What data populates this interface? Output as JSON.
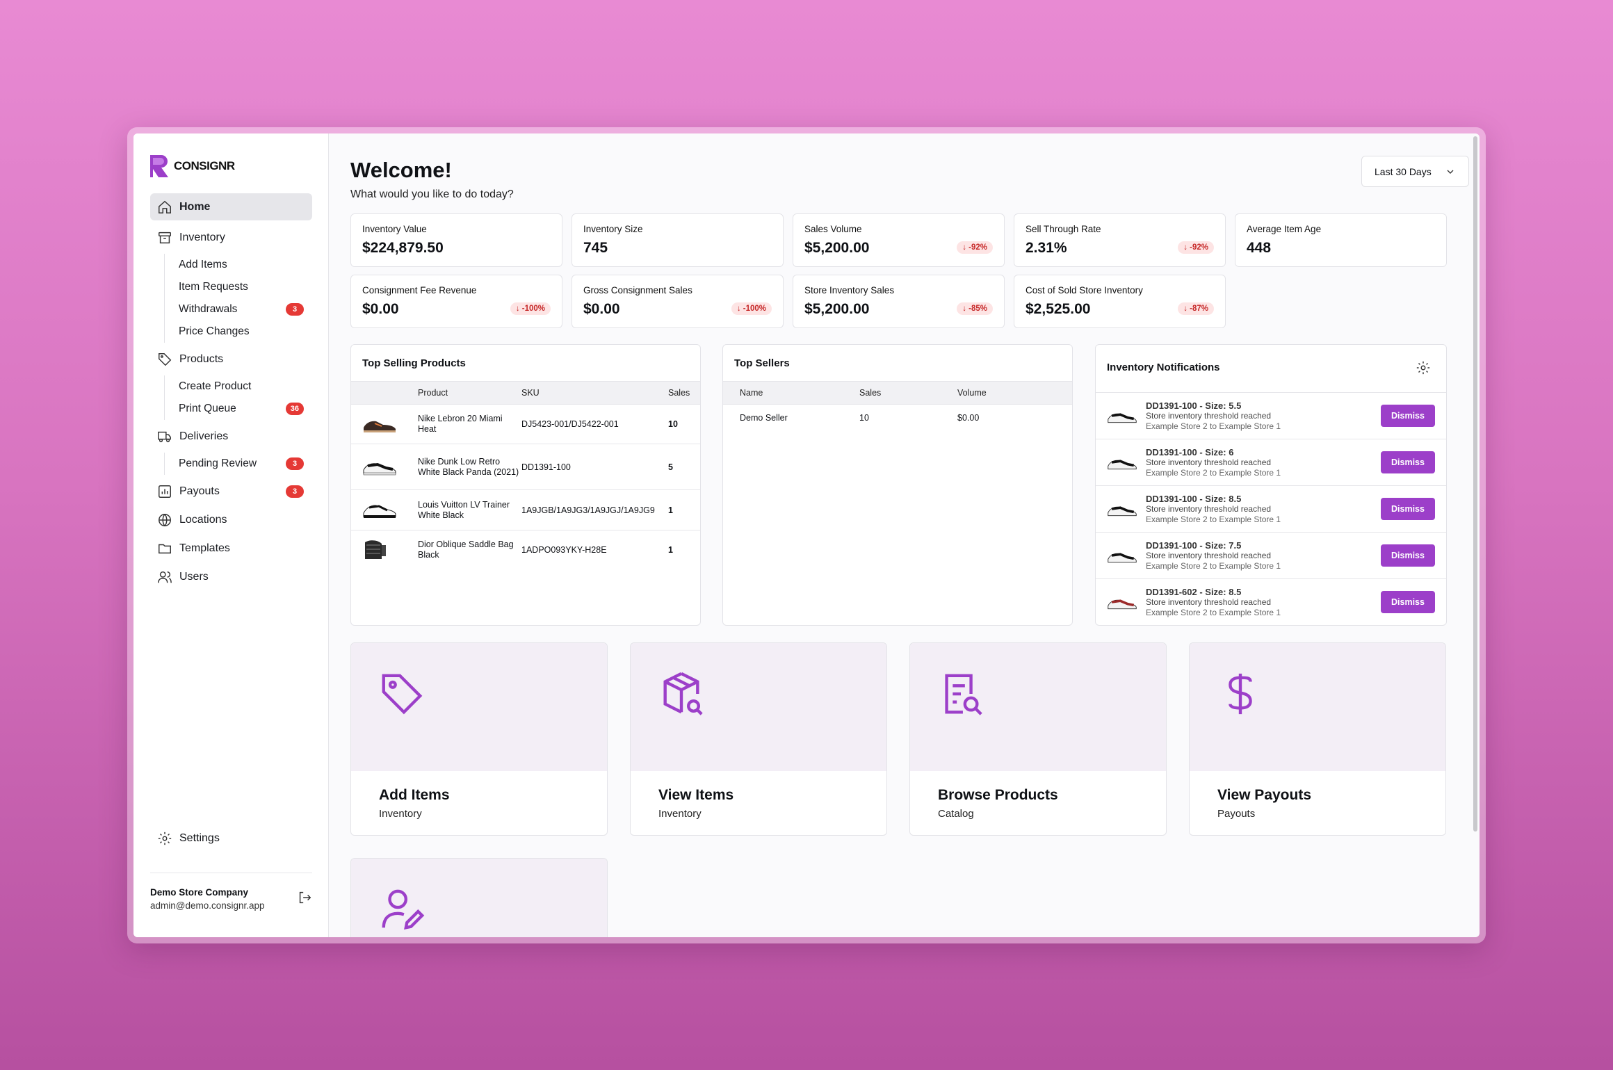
{
  "brand": {
    "name": "CONSIGNR",
    "accent": "#9c3fc9"
  },
  "sidebar": {
    "home": "Home",
    "inventory": "Inventory",
    "inventory_sub": [
      {
        "label": "Add Items",
        "badge": ""
      },
      {
        "label": "Item Requests",
        "badge": ""
      },
      {
        "label": "Withdrawals",
        "badge": "3"
      },
      {
        "label": "Price Changes",
        "badge": ""
      }
    ],
    "products": "Products",
    "products_sub": [
      {
        "label": "Create Product",
        "badge": ""
      },
      {
        "label": "Print Queue",
        "badge": "36"
      }
    ],
    "deliveries": "Deliveries",
    "deliveries_sub": [
      {
        "label": "Pending Review",
        "badge": "3"
      }
    ],
    "payouts": "Payouts",
    "payouts_badge": "3",
    "locations": "Locations",
    "templates": "Templates",
    "users": "Users",
    "settings": "Settings",
    "user_name": "Demo Store Company",
    "user_email": "admin@demo.consignr.app"
  },
  "header": {
    "title": "Welcome!",
    "subtitle": "What would you like to do today?",
    "range": "Last 30 Days"
  },
  "stats": [
    {
      "label": "Inventory Value",
      "value": "$224,879.50",
      "delta": ""
    },
    {
      "label": "Inventory Size",
      "value": "745",
      "delta": ""
    },
    {
      "label": "Sales Volume",
      "value": "$5,200.00",
      "delta": "↓ -92%"
    },
    {
      "label": "Sell Through Rate",
      "value": "2.31%",
      "delta": "↓ -92%"
    },
    {
      "label": "Average Item Age",
      "value": "448",
      "delta": ""
    },
    {
      "label": "Consignment Fee Revenue",
      "value": "$0.00",
      "delta": "↓ -100%"
    },
    {
      "label": "Gross Consignment Sales",
      "value": "$0.00",
      "delta": "↓ -100%"
    },
    {
      "label": "Store Inventory Sales",
      "value": "$5,200.00",
      "delta": "↓ -85%"
    },
    {
      "label": "Cost of Sold Store Inventory",
      "value": "$2,525.00",
      "delta": "↓ -87%"
    }
  ],
  "top_products": {
    "title": "Top Selling Products",
    "columns": [
      "Product",
      "SKU",
      "Sales"
    ],
    "rows": [
      {
        "product": "Nike Lebron 20 Miami Heat",
        "sku": "DJ5423-001/DJ5422-001",
        "sales": "10"
      },
      {
        "product": "Nike Dunk Low Retro White Black Panda (2021)",
        "sku": "DD1391-100",
        "sales": "5"
      },
      {
        "product": "Louis Vuitton LV Trainer White Black",
        "sku": "1A9JGB/1A9JG3/1A9JGJ/1A9JG9",
        "sales": "1"
      },
      {
        "product": "Dior Oblique Saddle Bag Black",
        "sku": "1ADPO093YKY-H28E",
        "sales": "1"
      }
    ]
  },
  "top_sellers": {
    "title": "Top Sellers",
    "columns": [
      "Name",
      "Sales",
      "Volume"
    ],
    "rows": [
      {
        "name": "Demo Seller",
        "sales": "10",
        "volume": "$0.00"
      }
    ]
  },
  "notifications": {
    "title": "Inventory Notifications",
    "dismiss": "Dismiss",
    "items": [
      {
        "title": "DD1391-100 - Size: 5.5",
        "line1": "Store inventory threshold reached",
        "line2": "Example Store 2 to Example Store 1"
      },
      {
        "title": "DD1391-100 - Size: 6",
        "line1": "Store inventory threshold reached",
        "line2": "Example Store 2 to Example Store 1"
      },
      {
        "title": "DD1391-100 - Size: 8.5",
        "line1": "Store inventory threshold reached",
        "line2": "Example Store 2 to Example Store 1"
      },
      {
        "title": "DD1391-100 - Size: 7.5",
        "line1": "Store inventory threshold reached",
        "line2": "Example Store 2 to Example Store 1"
      },
      {
        "title": "DD1391-602 - Size: 8.5",
        "line1": "Store inventory threshold reached",
        "line2": "Example Store 2 to Example Store 1"
      }
    ]
  },
  "actions": [
    {
      "title": "Add Items",
      "sub": "Inventory",
      "icon": "tag-icon"
    },
    {
      "title": "View Items",
      "sub": "Inventory",
      "icon": "box-search-icon"
    },
    {
      "title": "Browse Products",
      "sub": "Catalog",
      "icon": "document-search-icon"
    },
    {
      "title": "View Payouts",
      "sub": "Payouts",
      "icon": "dollar-icon"
    },
    {
      "title": "",
      "sub": "",
      "icon": "user-edit-icon"
    }
  ]
}
